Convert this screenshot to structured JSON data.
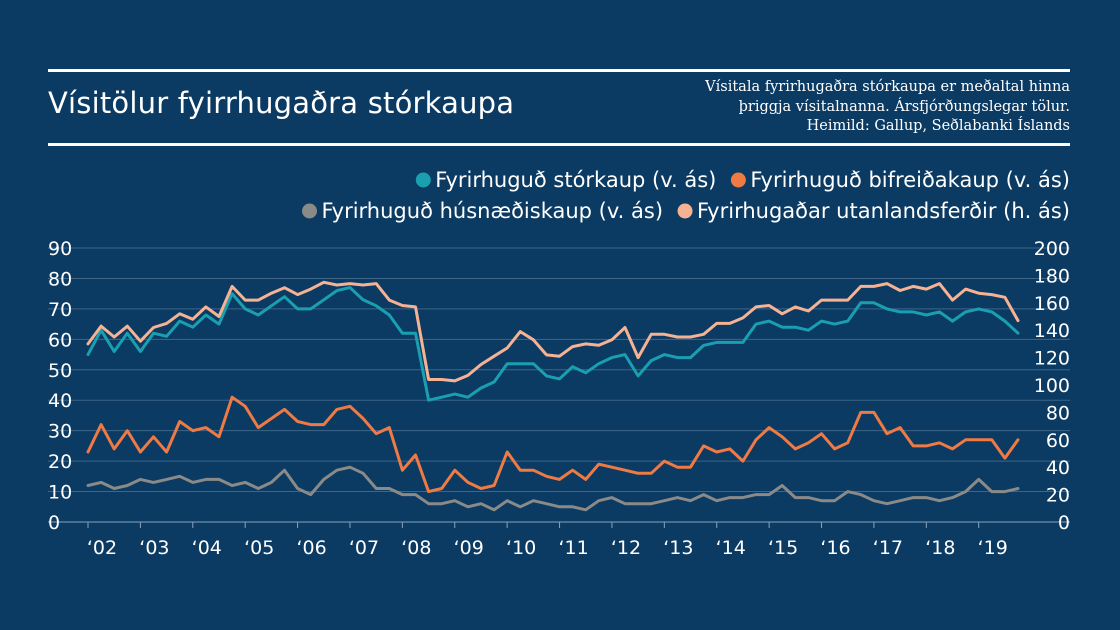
{
  "header": {
    "title": "Vísitölur fyirrhugaðra stórkaupa",
    "note_lines": [
      "Vísitala fyrirhugaðra stórkaupa er meðaltal hinna",
      "þriggja vísitalnanna. Ársfjórðungslegar tölur.",
      "Heimild: Gallup, Seðlabanki Íslands"
    ]
  },
  "chart_data": {
    "type": "line",
    "title": "Vísitölur fyirrhugaðra stórkaupa",
    "x_tick_labels": [
      "‘02",
      "‘03",
      "‘04",
      "‘05",
      "‘06",
      "‘07",
      "‘08",
      "‘09",
      "‘10",
      "‘11",
      "‘12",
      "‘13",
      "‘14",
      "‘15",
      "‘16",
      "‘17",
      "‘18",
      "‘19"
    ],
    "xlim": [
      2002,
      2019.75
    ],
    "y_left": {
      "range": [
        0,
        90
      ],
      "ticks": [
        0,
        10,
        20,
        30,
        40,
        50,
        60,
        70,
        80,
        90
      ]
    },
    "y_right": {
      "range": [
        0,
        200
      ],
      "ticks": [
        0,
        20,
        40,
        60,
        80,
        100,
        120,
        140,
        160,
        180,
        200
      ]
    },
    "grid": true,
    "legend_position": "top-right",
    "series": [
      {
        "name": "Fyrirhuguð stórkaup (v. ás)",
        "axis": "left",
        "color": "#1a9fb1",
        "values": [
          55,
          63,
          56,
          62,
          56,
          62,
          61,
          66,
          64,
          68,
          65,
          75,
          70,
          68,
          71,
          74,
          70,
          70,
          73,
          76,
          77,
          73,
          71,
          68,
          62,
          62,
          40,
          41,
          42,
          41,
          44,
          46,
          52,
          52,
          52,
          48,
          47,
          51,
          49,
          52,
          54,
          55,
          48,
          53,
          55,
          54,
          54,
          58,
          59,
          59,
          59,
          65,
          66,
          64,
          64,
          63,
          66,
          65,
          66,
          72,
          72,
          70,
          69,
          69,
          68,
          69,
          66,
          69,
          70,
          69,
          66,
          62
        ]
      },
      {
        "name": "Fyrirhuguð bifreiðakaup (v. ás)",
        "axis": "left",
        "color": "#ef7a44",
        "values": [
          23,
          32,
          24,
          30,
          23,
          28,
          23,
          33,
          30,
          31,
          28,
          41,
          38,
          31,
          34,
          37,
          33,
          32,
          32,
          37,
          38,
          34,
          29,
          31,
          17,
          22,
          10,
          11,
          17,
          13,
          11,
          12,
          23,
          17,
          17,
          15,
          14,
          17,
          14,
          19,
          18,
          17,
          16,
          16,
          20,
          18,
          18,
          25,
          23,
          24,
          20,
          27,
          31,
          28,
          24,
          26,
          29,
          24,
          26,
          36,
          36,
          29,
          31,
          25,
          25,
          26,
          24,
          27,
          27,
          27,
          21,
          27
        ]
      },
      {
        "name": "Fyrirhuguð húsnæðiskaup (v. ás)",
        "axis": "left",
        "color": "#8a8b88",
        "values": [
          12,
          13,
          11,
          12,
          14,
          13,
          14,
          15,
          13,
          14,
          14,
          12,
          13,
          11,
          13,
          17,
          11,
          9,
          14,
          17,
          18,
          16,
          11,
          11,
          9,
          9,
          6,
          6,
          7,
          5,
          6,
          4,
          7,
          5,
          7,
          6,
          5,
          5,
          4,
          7,
          8,
          6,
          6,
          6,
          7,
          8,
          7,
          9,
          7,
          8,
          8,
          9,
          9,
          12,
          8,
          8,
          7,
          7,
          10,
          9,
          7,
          6,
          7,
          8,
          8,
          7,
          8,
          10,
          14,
          10,
          10,
          11
        ]
      },
      {
        "name": "Fyrirhugaðar utanlandsferðir (h. ás)",
        "axis": "right",
        "color": "#f6b394",
        "values": [
          130,
          143,
          135,
          143,
          132,
          142,
          145,
          152,
          148,
          157,
          150,
          172,
          162,
          162,
          167,
          171,
          166,
          170,
          175,
          173,
          174,
          173,
          174,
          162,
          158,
          157,
          104,
          104,
          103,
          107,
          115,
          121,
          127,
          139,
          133,
          122,
          121,
          128,
          130,
          129,
          133,
          142,
          120,
          137,
          137,
          135,
          135,
          137,
          145,
          145,
          149,
          157,
          158,
          152,
          157,
          154,
          162,
          162,
          162,
          172,
          172,
          174,
          169,
          172,
          170,
          174,
          162,
          170,
          167,
          166,
          164,
          147
        ]
      }
    ]
  }
}
